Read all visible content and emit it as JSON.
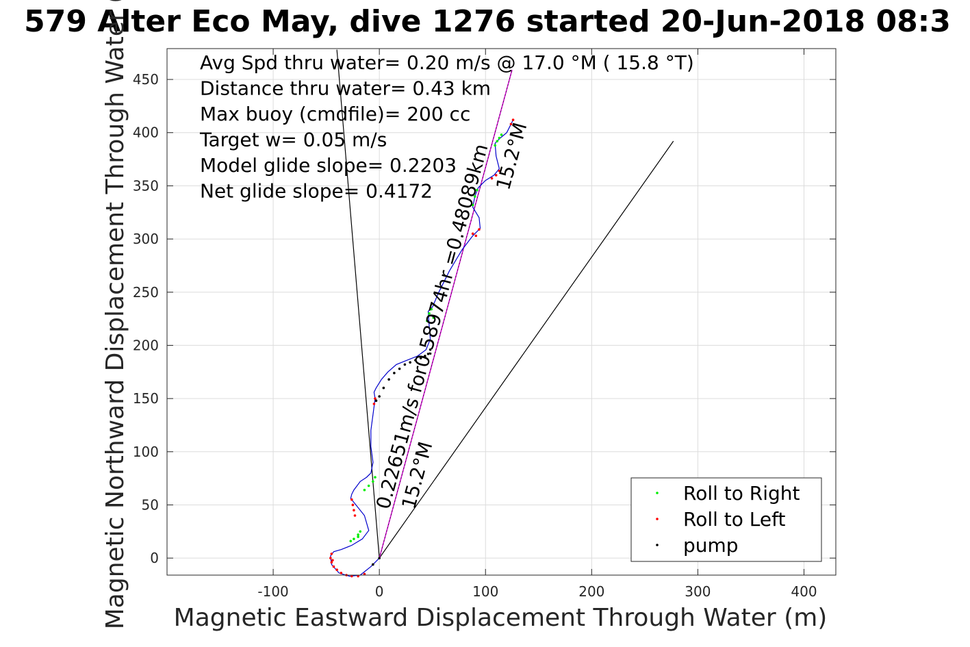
{
  "chart_data": {
    "type": "scatter",
    "title": "579 Alter Eco May, dive 1276 started 20-Jun-2018 08:3",
    "xlabel": "Magnetic Eastward Displacement Through Water (m)",
    "ylabel": "Magnetic Northward Displacement Through Water (",
    "xlim": [
      -200,
      430
    ],
    "ylim": [
      -16,
      479
    ],
    "xticks": [
      -100,
      0,
      100,
      200,
      300,
      400
    ],
    "xtick_labels": [
      "-100",
      "0",
      "100",
      "200",
      "300",
      "400"
    ],
    "yticks": [
      0,
      50,
      100,
      150,
      200,
      250,
      300,
      350,
      400,
      450
    ],
    "ytick_labels": [
      "0",
      "50",
      "100",
      "150",
      "200",
      "250",
      "300",
      "350",
      "400",
      "450"
    ],
    "grid": true,
    "legend_position": "bottom-right",
    "colors": {
      "track": "#0000cc",
      "roll_right": "#00ee00",
      "roll_left": "#ff0000",
      "pump": "#000000",
      "net_line": "#cc00cc",
      "wedge": "#000000"
    },
    "annotations": [
      "Avg Spd thru water=  0.20 m/s @  17.0 °M ( 15.8 °T)",
      "Distance thru water=  0.43 km",
      "Max buoy (cmdfile)= 200 cc",
      "Target w= 0.05 m/s",
      "Model glide slope= 0.2203",
      "Net glide slope= 0.4172"
    ],
    "line_labels": [
      {
        "line1": "0.22651m/s for0.58974hr =0.48089km",
        "line2": "15.2°M"
      },
      {
        "line1": "",
        "line2": "15.2°M"
      }
    ],
    "net_line": {
      "x": [
        0,
        125
      ],
      "y": [
        0,
        459
      ]
    },
    "wedge_lines": [
      {
        "x": [
          0,
          -40
        ],
        "y": [
          0,
          478
        ]
      },
      {
        "x": [
          0,
          277
        ],
        "y": [
          0,
          392
        ]
      }
    ],
    "series": [
      {
        "name": "Roll to Right",
        "marker": "dot",
        "points": [
          [
            -6,
            72
          ],
          [
            -4,
            76
          ],
          [
            -10,
            68
          ],
          [
            -14,
            64
          ],
          [
            -20,
            22
          ],
          [
            -18,
            25
          ],
          [
            -24,
            18
          ],
          [
            -27,
            16
          ],
          [
            47,
            230
          ],
          [
            49,
            234
          ],
          [
            51,
            226
          ],
          [
            88,
            332
          ],
          [
            90,
            340
          ],
          [
            109,
            388
          ],
          [
            111,
            392
          ],
          [
            113,
            395
          ],
          [
            115,
            398
          ],
          [
            45,
            223
          ],
          [
            -20,
            20
          ],
          [
            92,
            346
          ]
        ]
      },
      {
        "name": "Roll to Left",
        "marker": "dot",
        "points": [
          [
            -45,
            4
          ],
          [
            -46,
            0
          ],
          [
            -45,
            -4
          ],
          [
            -43,
            -8
          ],
          [
            -40,
            -11
          ],
          [
            -36,
            -14
          ],
          [
            -31,
            -16
          ],
          [
            -26,
            -17
          ],
          [
            -20,
            -17
          ],
          [
            -14,
            -15
          ],
          [
            -26,
            55
          ],
          [
            -24,
            45
          ],
          [
            -23,
            40
          ],
          [
            -5,
            145
          ],
          [
            -4,
            150
          ],
          [
            88,
            305
          ],
          [
            91,
            303
          ],
          [
            94,
            309
          ],
          [
            106,
            357
          ],
          [
            110,
            360
          ],
          [
            113,
            364
          ],
          [
            124,
            408
          ],
          [
            126,
            412
          ],
          [
            -25,
            50
          ],
          [
            -44,
            -2
          ]
        ]
      },
      {
        "name": "pump",
        "marker": "dot",
        "points": [
          [
            0,
            0
          ],
          [
            -6,
            -6
          ],
          [
            -3,
            148
          ],
          [
            0,
            152
          ],
          [
            4,
            160
          ],
          [
            9,
            168
          ],
          [
            14,
            174
          ],
          [
            19,
            178
          ],
          [
            24,
            182
          ],
          [
            29,
            184
          ],
          [
            34,
            186
          ],
          [
            39,
            188
          ],
          [
            43,
            190
          ],
          [
            46,
            192
          ],
          [
            48,
            196
          ]
        ]
      }
    ],
    "track": {
      "x": [
        0,
        -8,
        -18,
        -28,
        -38,
        -45,
        -46,
        -43,
        -36,
        -26,
        -16,
        -10,
        -14,
        -22,
        -27,
        -26,
        -24,
        -21,
        -18,
        -12,
        -8,
        -6,
        -8,
        -8,
        -6,
        -4,
        -5,
        -3,
        2,
        8,
        16,
        26,
        36,
        44,
        48,
        47,
        46,
        50,
        56,
        66,
        78,
        88,
        95,
        94,
        88,
        90,
        93,
        100,
        108,
        113,
        110,
        109,
        114,
        120,
        124,
        126
      ],
      "y": [
        0,
        -8,
        -16,
        -17,
        -14,
        -6,
        2,
        6,
        8,
        12,
        18,
        26,
        40,
        50,
        56,
        60,
        64,
        68,
        72,
        76,
        80,
        90,
        105,
        120,
        135,
        150,
        156,
        160,
        168,
        175,
        182,
        186,
        190,
        196,
        206,
        218,
        232,
        236,
        250,
        270,
        290,
        303,
        310,
        320,
        330,
        340,
        348,
        355,
        360,
        366,
        378,
        390,
        395,
        400,
        408,
        412
      ]
    },
    "legend": [
      "Roll to Right",
      "Roll to Left",
      "pump"
    ]
  }
}
